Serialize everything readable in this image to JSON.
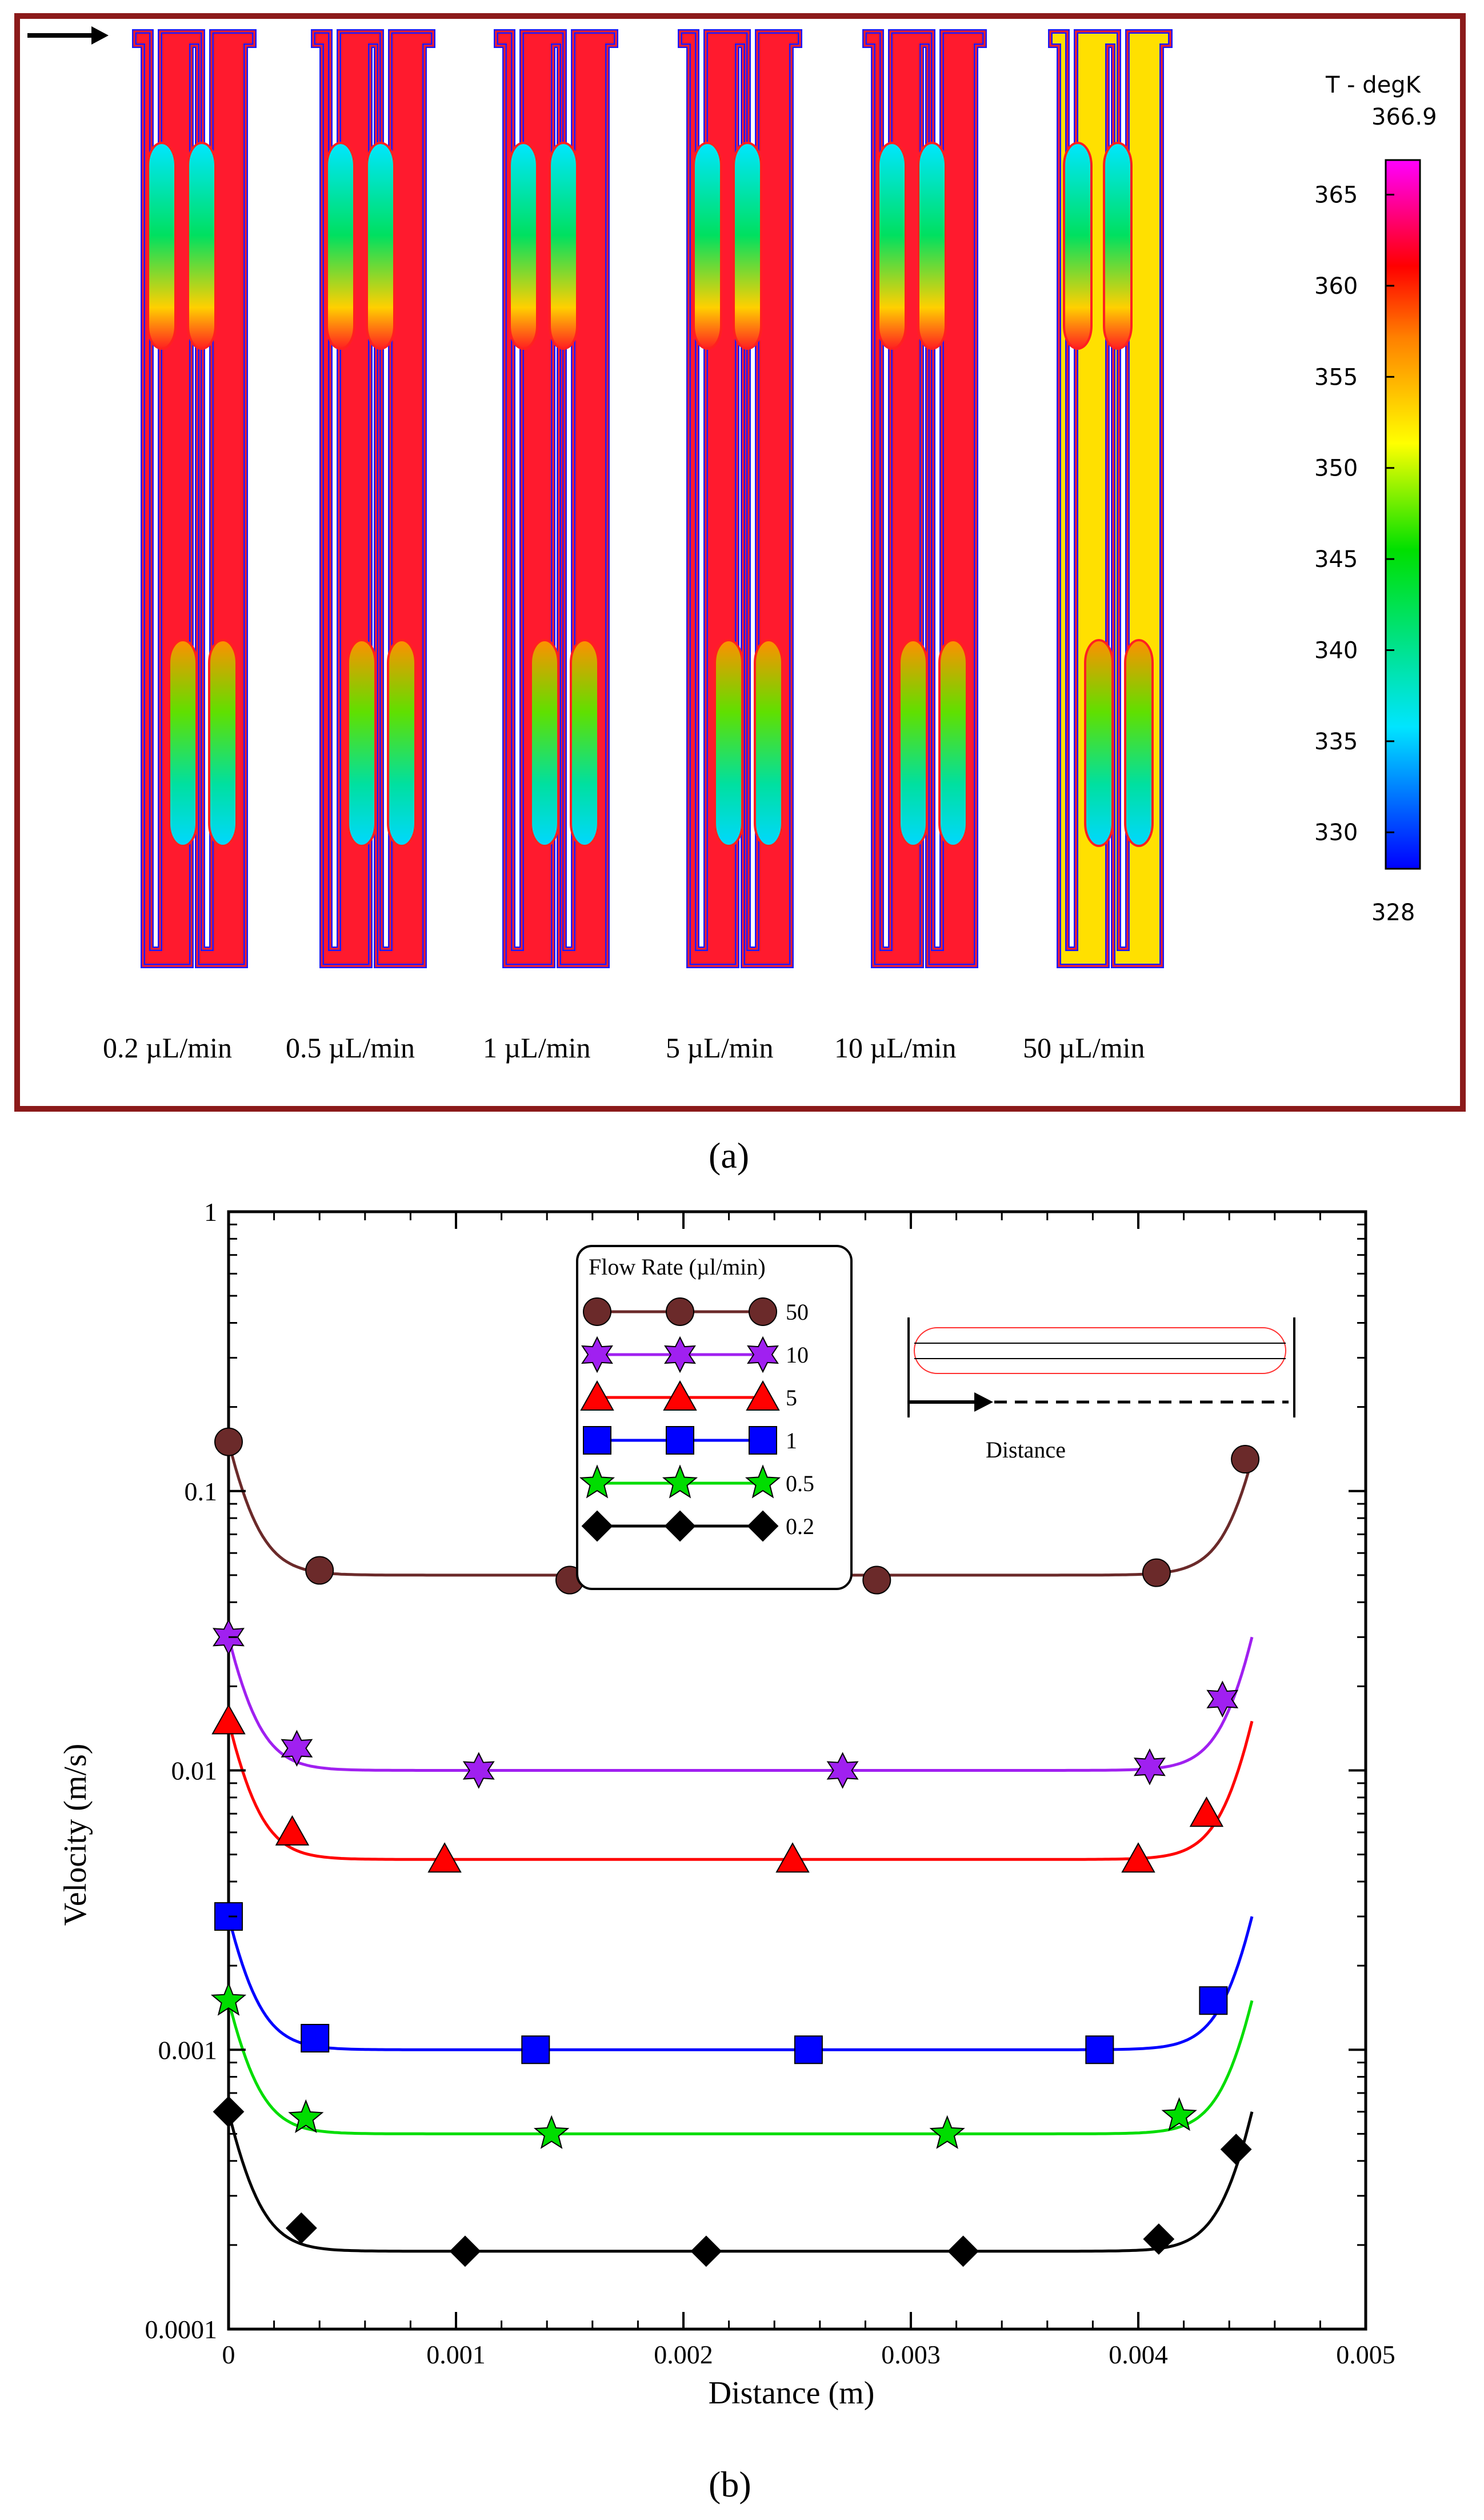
{
  "panel_a": {
    "label": "(a)",
    "colorbar": {
      "title": "T - degK",
      "max_label": "366.9",
      "min_label": "328",
      "ticks": [
        "365",
        "360",
        "355",
        "350",
        "345",
        "340",
        "335",
        "330"
      ],
      "min": 328,
      "max": 366.9
    },
    "flow_labels": [
      "0.2 µL/min",
      "0.5 µL/min",
      "1 µL/min",
      "5 µL/min",
      "10 µL/min",
      "50 µL/min"
    ],
    "colors": {
      "frame": "#8b1a1a",
      "channel": "#ff1a2e",
      "edge": "#1a1aff",
      "hot": "#ff1a30",
      "cool": "#00e6ff",
      "mid": "#00e060"
    }
  },
  "panel_b": {
    "label": "(b)"
  },
  "chart_data": {
    "type": "line",
    "xlabel": "Distance (m)",
    "ylabel": "Velocity (m/s)",
    "xlim": [
      0,
      0.005
    ],
    "ylim": [
      0.0001,
      1
    ],
    "yscale": "log",
    "x_tick_labels": [
      "0",
      "0.001",
      "0.002",
      "0.003",
      "0.004",
      "0.005"
    ],
    "y_tick_labels": [
      "0.0001",
      "0.001",
      "0.01",
      "0.1",
      "1"
    ],
    "legend": {
      "title": "Flow Rate (µl/min)",
      "placement": "top-center"
    },
    "inset": {
      "label": "Distance"
    },
    "series": [
      {
        "name": "50",
        "color": "#6b2a2a",
        "marker": "circle",
        "curve": {
          "start": 0.15,
          "plateau": 0.05,
          "end": 0.13
        },
        "points": [
          [
            0.0,
            0.15
          ],
          [
            0.0004,
            0.052
          ],
          [
            0.0015,
            0.048
          ],
          [
            0.00285,
            0.048
          ],
          [
            0.00408,
            0.051
          ],
          [
            0.00447,
            0.13
          ]
        ]
      },
      {
        "name": "10",
        "color": "#a020f0",
        "marker": "star6",
        "curve": {
          "start": 0.03,
          "plateau": 0.01,
          "end": 0.03
        },
        "points": [
          [
            0.0,
            0.03
          ],
          [
            0.0003,
            0.012
          ],
          [
            0.0011,
            0.01
          ],
          [
            0.0027,
            0.01
          ],
          [
            0.00405,
            0.0103
          ],
          [
            0.00437,
            0.018
          ]
        ]
      },
      {
        "name": "5",
        "color": "#ff0000",
        "marker": "triangle",
        "curve": {
          "start": 0.015,
          "plateau": 0.0048,
          "end": 0.015
        },
        "points": [
          [
            0.0,
            0.015
          ],
          [
            0.00028,
            0.006
          ],
          [
            0.00095,
            0.0048
          ],
          [
            0.00248,
            0.0048
          ],
          [
            0.004,
            0.0048
          ],
          [
            0.0043,
            0.007
          ]
        ]
      },
      {
        "name": "1",
        "color": "#0000ff",
        "marker": "square",
        "curve": {
          "start": 0.003,
          "plateau": 0.001,
          "end": 0.003
        },
        "points": [
          [
            0.0,
            0.003
          ],
          [
            0.00038,
            0.0011
          ],
          [
            0.00135,
            0.001
          ],
          [
            0.00255,
            0.001
          ],
          [
            0.00383,
            0.001
          ],
          [
            0.00433,
            0.0015
          ]
        ]
      },
      {
        "name": "0.5",
        "color": "#00dd00",
        "marker": "star5",
        "curve": {
          "start": 0.0015,
          "plateau": 0.0005,
          "end": 0.0015
        },
        "points": [
          [
            0.0,
            0.0015
          ],
          [
            0.00034,
            0.00057
          ],
          [
            0.00142,
            0.0005
          ],
          [
            0.00316,
            0.0005
          ],
          [
            0.00418,
            0.00058
          ]
        ]
      },
      {
        "name": "0.2",
        "color": "#000000",
        "marker": "diamond",
        "curve": {
          "start": 0.0006,
          "plateau": 0.00019,
          "end": 0.0006
        },
        "points": [
          [
            0.0,
            0.0006
          ],
          [
            0.00032,
            0.00023
          ],
          [
            0.00104,
            0.00019
          ],
          [
            0.0021,
            0.00019
          ],
          [
            0.00323,
            0.00019
          ],
          [
            0.00409,
            0.00021
          ],
          [
            0.00443,
            0.00044
          ]
        ]
      }
    ]
  }
}
